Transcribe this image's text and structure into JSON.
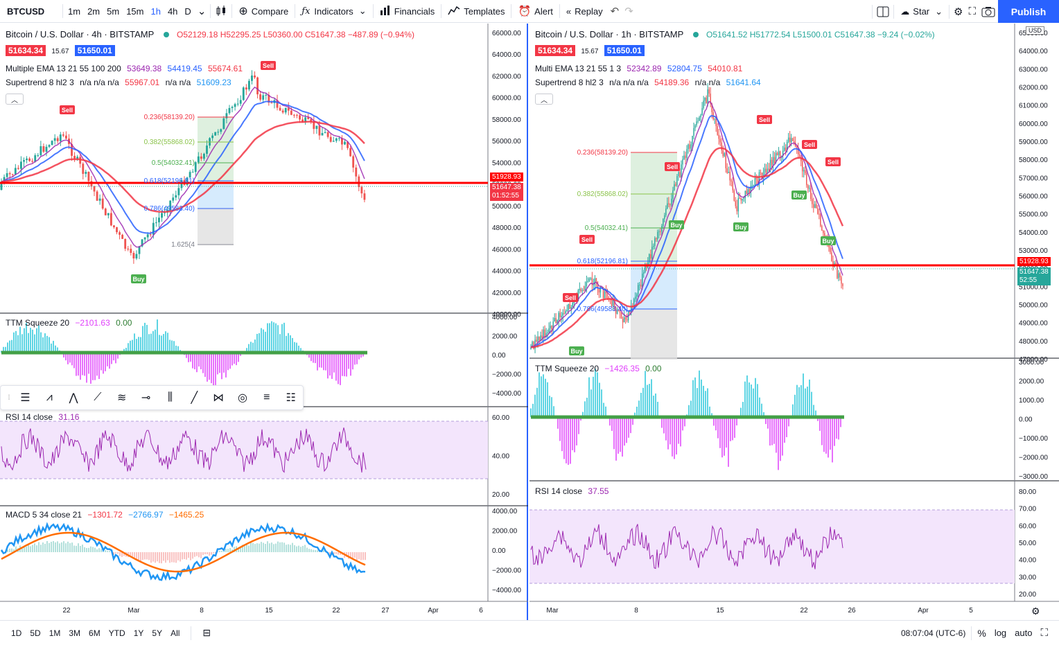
{
  "toolbar": {
    "symbol": "BTCUSD",
    "timeframes": [
      "1m",
      "2m",
      "5m",
      "15m",
      "1h",
      "4h",
      "D"
    ],
    "active_timeframe": "1h",
    "compare": "Compare",
    "indicators": "Indicators",
    "financials": "Financials",
    "templates": "Templates",
    "alert": "Alert",
    "replay": "Replay",
    "star": "Star",
    "publish": "Publish"
  },
  "left_chart": {
    "title": "Bitcoin / U.S. Dollar · 4h · BITSTAMP",
    "ohlc": "O52129.18 H52295.25 L50360.00 C51647.38 −487.89 (−0.94%)",
    "bid": "51634.34",
    "spread": "15.67",
    "ask": "51650.01",
    "ema_label": "Multiple EMA 13 21 55 100 200",
    "ema_values": [
      "53649.38",
      "54419.45",
      "55674.61"
    ],
    "supertrend_label": "Supertrend 8 hl2 3",
    "supertrend_vals": "n/a n/a n/a",
    "supertrend_red": "55967.01",
    "supertrend_na": "n/a n/a",
    "supertrend_blue": "51609.23",
    "price_axis": [
      "66000.00",
      "64000.00",
      "62000.00",
      "60000.00",
      "58000.00",
      "56000.00",
      "54000.00",
      "52000.00",
      "50000.00",
      "48000.00",
      "46000.00",
      "44000.00",
      "42000.00",
      "40000.00"
    ],
    "red_line_price": "51928.93",
    "last_price": "51647.38",
    "countdown": "01:52:55",
    "fib_levels": [
      "0.236(58139.20)",
      "0.382(55868.02)",
      "0.5(54032.41)",
      "0.618(52196.81)",
      "0.786(49583.40)",
      "1.625(4"
    ],
    "signals": [
      "Sell",
      "Sell",
      "Buy"
    ],
    "ttm_label": "TTM Squeeze 20",
    "ttm_val": "−2101.63",
    "ttm_zero": "0.00",
    "ttm_axis": [
      "4000.00",
      "2000.00",
      "0.00",
      "−2000.00",
      "−4000.00"
    ],
    "rsi_label": "RSI 14 close",
    "rsi_val": "31.16",
    "rsi_axis": [
      "60.00",
      "40.00",
      "20.00"
    ],
    "macd_label": "MACD 5 34 close 21",
    "macd_vals": [
      "−1301.72",
      "−2766.97",
      "−1465.25"
    ],
    "macd_axis": [
      "4000.00",
      "2000.00",
      "0.00",
      "−2000.00",
      "−4000.00"
    ],
    "time_axis": [
      "22",
      "Mar",
      "8",
      "15",
      "22",
      "27",
      "Apr",
      "6"
    ]
  },
  "right_chart": {
    "title": "Bitcoin / U.S. Dollar · 1h · BITSTAMP",
    "ohlc": "O51641.52 H51772.54 L51500.01 C51647.38 −9.24 (−0.02%)",
    "bid": "51634.34",
    "spread": "15.67",
    "ask": "51650.01",
    "ema_label": "Multi EMA 13 21 55 1 3",
    "ema_values": [
      "52342.89",
      "52804.75",
      "54010.81"
    ],
    "supertrend_label": "Supertrend 8 hl2 3",
    "supertrend_vals": "n/a n/a n/a",
    "supertrend_red": "54189.36",
    "supertrend_na": "n/a n/a",
    "supertrend_blue": "51641.64",
    "currency": "USD",
    "price_axis": [
      "65000.00",
      "64000.00",
      "63000.00",
      "62000.00",
      "61000.00",
      "60000.00",
      "59000.00",
      "58000.00",
      "57000.00",
      "56000.00",
      "55000.00",
      "54000.00",
      "53000.00",
      "52000.00",
      "51000.00",
      "50000.00",
      "49000.00",
      "48000.00",
      "47000.00"
    ],
    "red_line_price": "51928.93",
    "last_price": "51647.38",
    "countdown": "52:55",
    "fib_levels": [
      "0.236(58139.20)",
      "0.382(55868.02)",
      "0.5(54032.41)",
      "0.618(52196.81)",
      "0.786(49583.40)"
    ],
    "ttm_label": "TTM Squeeze 20",
    "ttm_val": "−1426.35",
    "ttm_zero": "0.00",
    "ttm_axis": [
      "3000.00",
      "2000.00",
      "1000.00",
      "0.00",
      "−1000.00",
      "−2000.00",
      "−3000.00"
    ],
    "rsi_label": "RSI 14 close",
    "rsi_val": "37.55",
    "rsi_axis": [
      "80.00",
      "70.00",
      "60.00",
      "50.00",
      "40.00",
      "30.00",
      "20.00"
    ],
    "time_axis": [
      "Mar",
      "8",
      "15",
      "22",
      "26",
      "Apr",
      "5"
    ]
  },
  "bottom_bar": {
    "ranges": [
      "1D",
      "5D",
      "1M",
      "3M",
      "6M",
      "YTD",
      "1Y",
      "5Y",
      "All"
    ],
    "time": "08:07:04 (UTC-6)",
    "percent": "%",
    "log": "log",
    "auto": "auto"
  },
  "colors": {
    "accent": "#2962ff",
    "red_line": "#ff0000",
    "bid": "#f23645",
    "ask": "#2962ff",
    "rsi_fill": "#f3e5fc",
    "rsi_line": "#9c27b0",
    "ttm_pos": "#26c6da",
    "ttm_neg": "#e040fb",
    "macd_line": "#2196f3",
    "signal_line": "#ff6d00"
  }
}
